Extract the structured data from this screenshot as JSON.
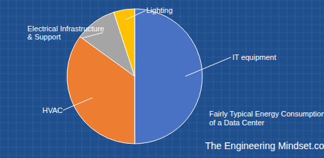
{
  "chart_data": {
    "type": "pie",
    "title": "Fairly Typical Energy Consumption of a Data Center",
    "categories": [
      "IT equipment",
      "HVAC",
      "Electrical Infrastructure & Support",
      "Lighting"
    ],
    "values": [
      50,
      35,
      10,
      5
    ],
    "colors": [
      "#4a72c4",
      "#ed7d31",
      "#a5a5a5",
      "#ffc000"
    ],
    "annotations": [
      "The Engineering Mindset.com"
    ]
  }
}
